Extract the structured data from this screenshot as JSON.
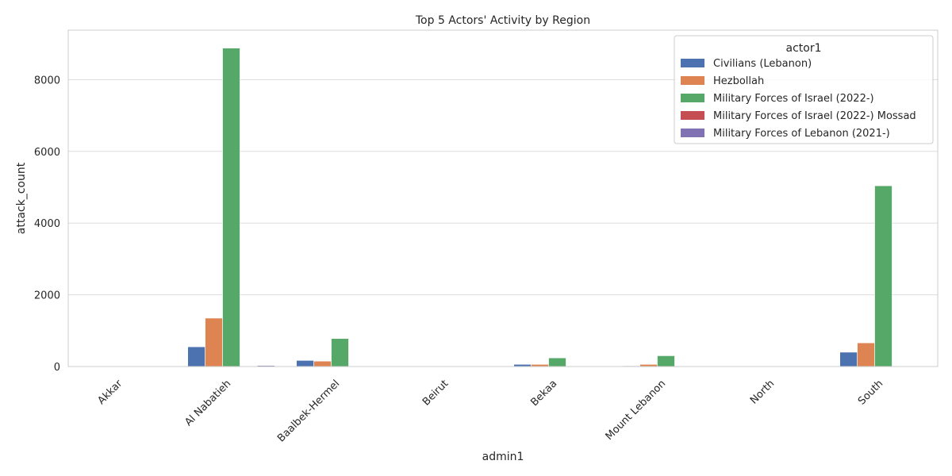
{
  "chart_data": {
    "type": "bar",
    "title": "Top 5 Actors' Activity by Region",
    "xlabel": "admin1",
    "ylabel": "attack_count",
    "ylim": [
      0,
      9380
    ],
    "yticks": [
      0,
      2000,
      4000,
      6000,
      8000
    ],
    "grid": "horizontal",
    "legend_title": "actor1",
    "legend_position": "top-right",
    "categories": [
      "Akkar",
      "Al Nabatieh",
      "Baalbek-Hermel",
      "Beirut",
      "Bekaa",
      "Mount Lebanon",
      "North",
      "South"
    ],
    "series": [
      {
        "name": "Civilians (Lebanon)",
        "color": "#4c72b0",
        "values": [
          0,
          550,
          170,
          0,
          60,
          20,
          0,
          400
        ]
      },
      {
        "name": "Hezbollah",
        "color": "#dd8452",
        "values": [
          0,
          1350,
          150,
          0,
          60,
          60,
          0,
          660
        ]
      },
      {
        "name": "Military Forces of Israel (2022-)",
        "color": "#55a868",
        "values": [
          0,
          8880,
          780,
          0,
          240,
          300,
          0,
          5040
        ]
      },
      {
        "name": "Military Forces of Israel (2022-) Mossad",
        "color": "#c44e52",
        "values": [
          0,
          0,
          0,
          0,
          0,
          0,
          0,
          0
        ]
      },
      {
        "name": "Military Forces of Lebanon (2021-)",
        "color": "#8172b3",
        "values": [
          0,
          30,
          0,
          0,
          10,
          0,
          0,
          0
        ]
      }
    ]
  }
}
